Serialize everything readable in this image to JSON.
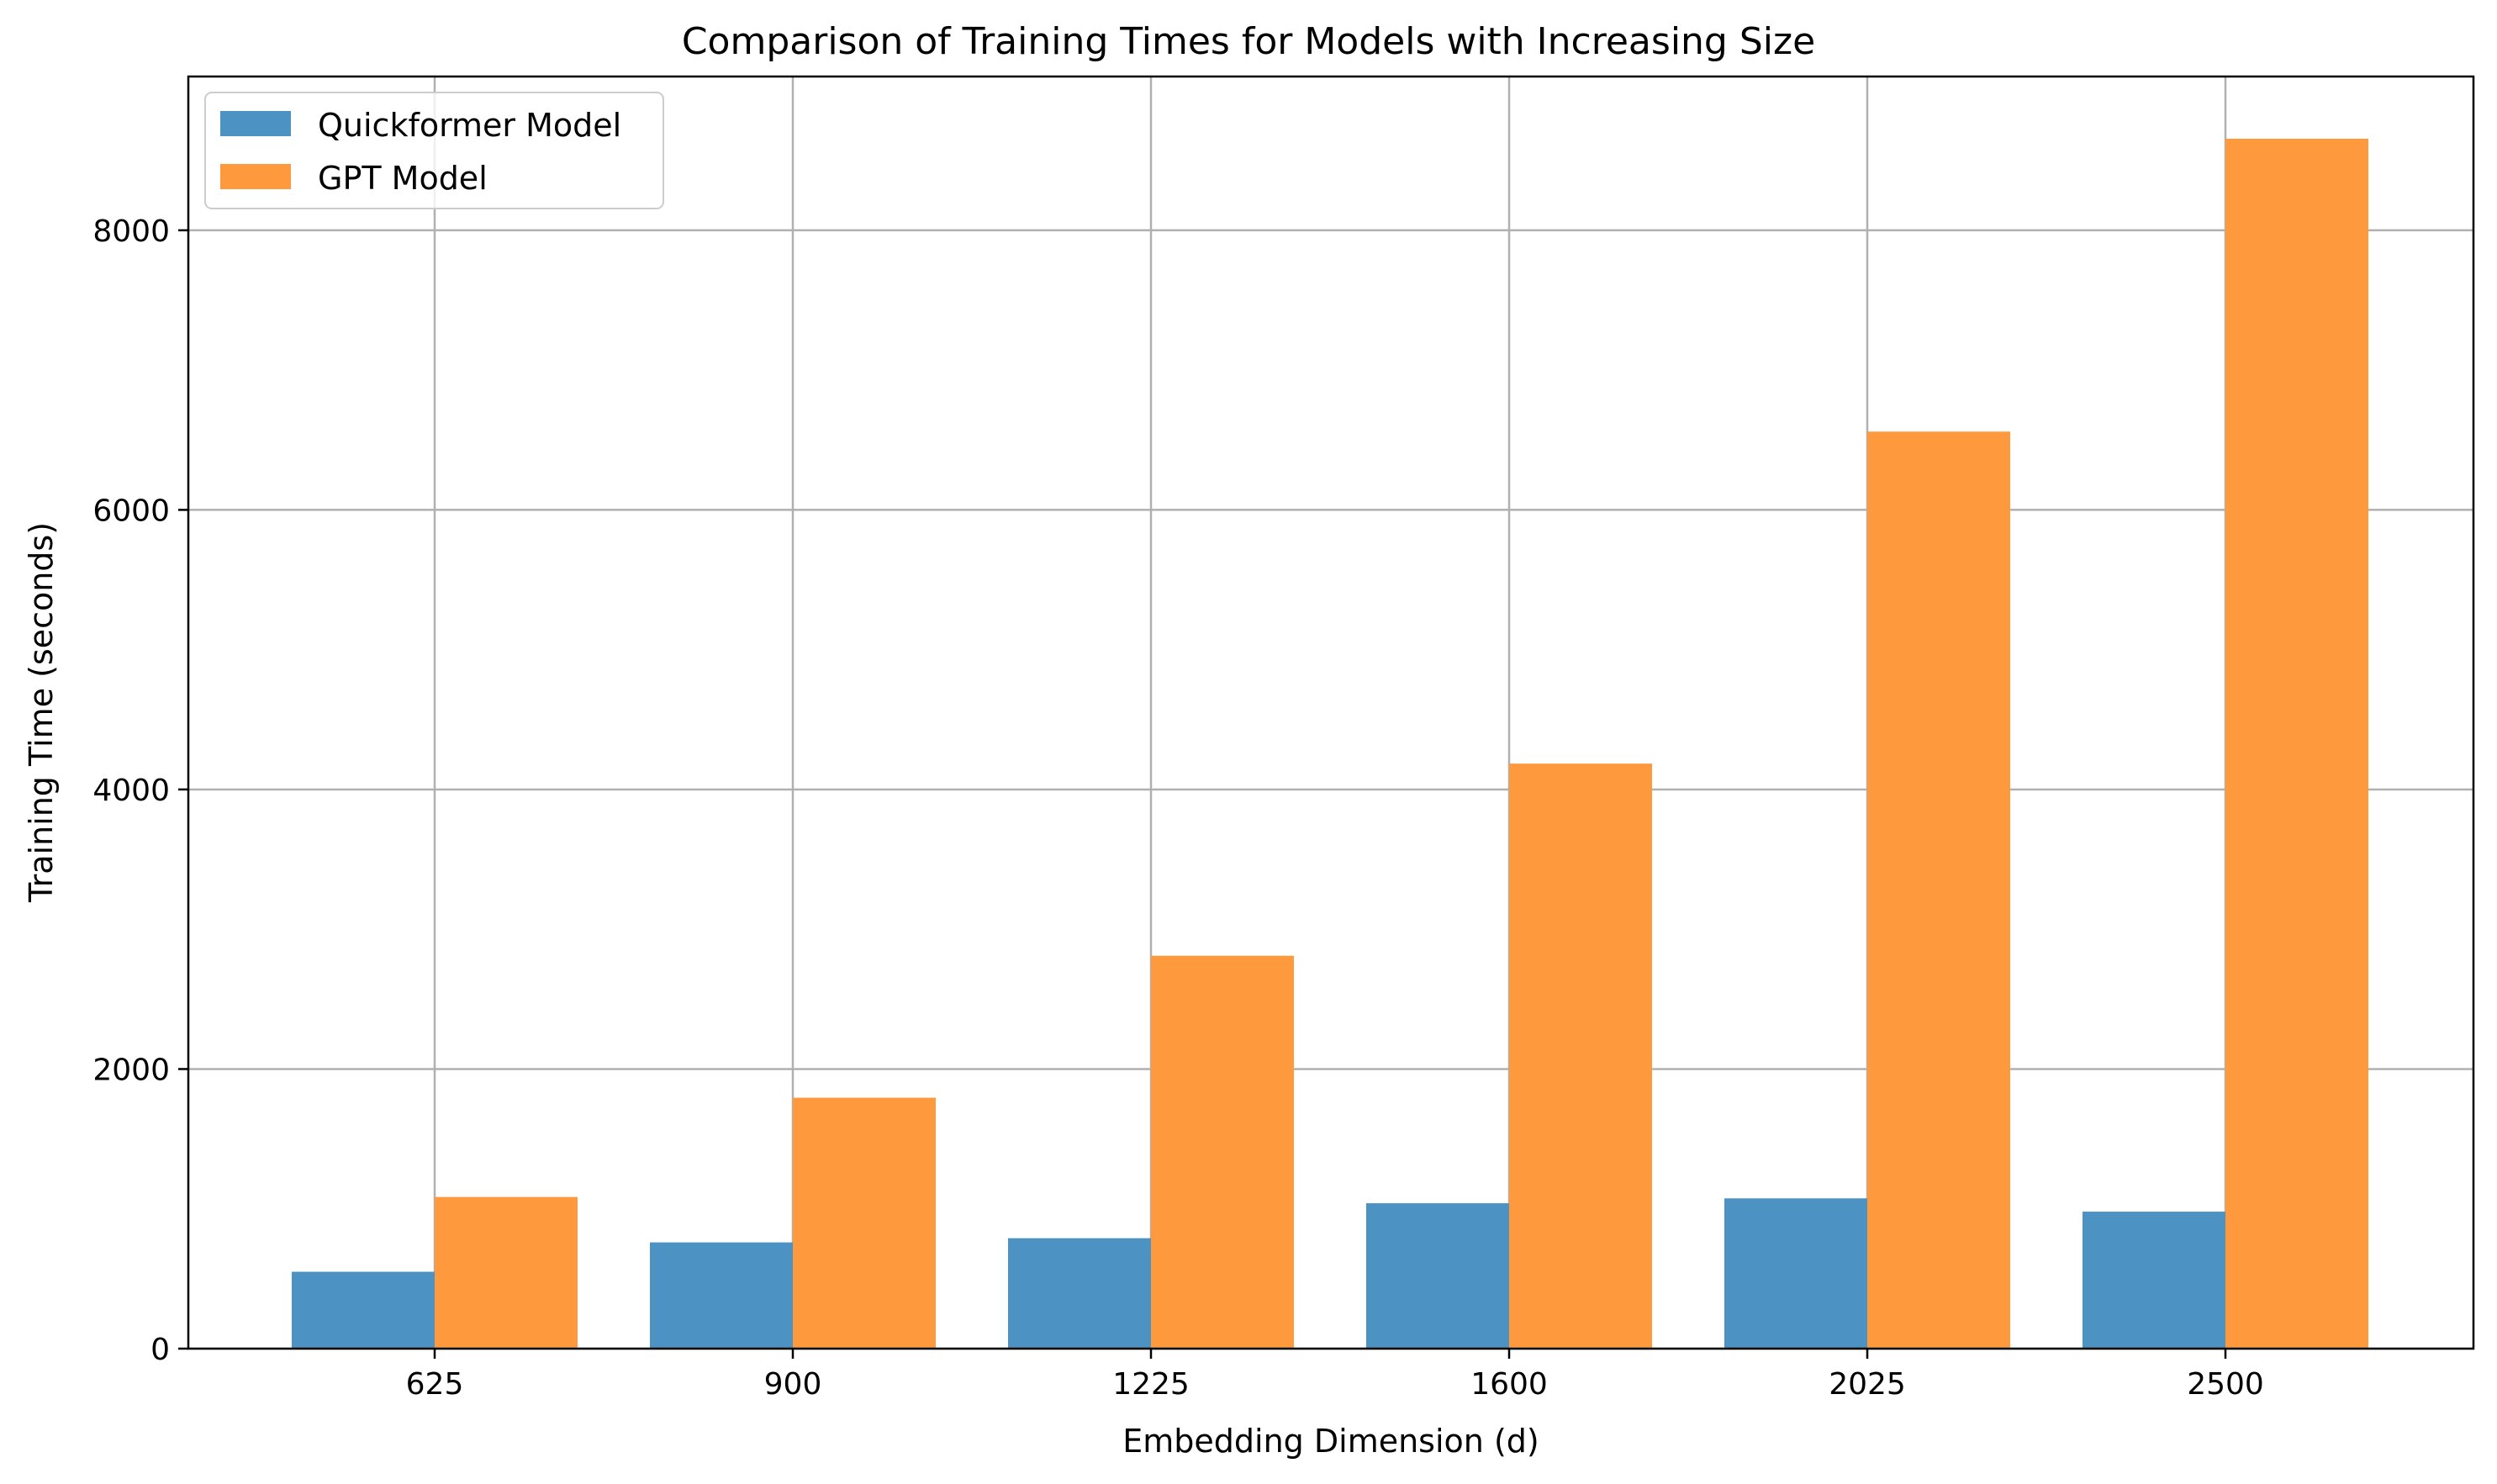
{
  "chart_data": {
    "type": "bar",
    "title": "Comparison of Training Times for Models with Increasing Size",
    "xlabel": "Embedding Dimension (d)",
    "ylabel": "Training Time (seconds)",
    "categories": [
      "625",
      "900",
      "1225",
      "1600",
      "2025",
      "2500"
    ],
    "series": [
      {
        "name": "Quickformer Model",
        "color": "#4c92c3",
        "values": [
          550,
          760,
          790,
          1040,
          1075,
          980
        ]
      },
      {
        "name": "GPT Model",
        "color": "#ff993e",
        "values": [
          1085,
          1795,
          2810,
          4185,
          6560,
          8655
        ]
      }
    ],
    "ylim": [
      0,
      9100
    ],
    "yticks": [
      0,
      2000,
      4000,
      6000,
      8000
    ],
    "grid": true,
    "legend_position": "top-left"
  }
}
